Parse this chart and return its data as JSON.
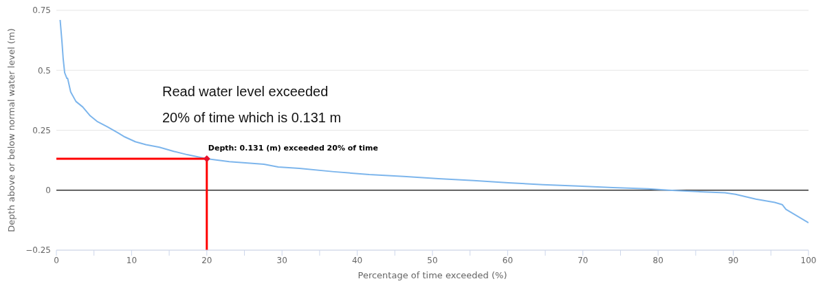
{
  "chart_data": {
    "type": "line",
    "xlabel": "Percentage of time exceeded (%)",
    "ylabel": "Depth above or below normal water level (m)",
    "xlim": [
      0,
      100
    ],
    "ylim": [
      -0.25,
      0.75
    ],
    "xticks": [
      0,
      {
        "value": 5,
        "label": null
      },
      10,
      {
        "value": 15,
        "label": null
      },
      20,
      {
        "value": 25,
        "label": null
      },
      30,
      {
        "value": 35,
        "label": null
      },
      40,
      {
        "value": 45,
        "label": null
      },
      50,
      {
        "value": 55,
        "label": null
      },
      60,
      {
        "value": 65,
        "label": null
      },
      70,
      {
        "value": 75,
        "label": null
      },
      80,
      {
        "value": 85,
        "label": null
      },
      90,
      {
        "value": 95,
        "label": null
      },
      100
    ],
    "yticks": [
      {
        "value": -0.25,
        "label": "−0.25"
      },
      0,
      0.25,
      0.5,
      0.75
    ],
    "grid": "y",
    "marker": "none",
    "line_style": "solid",
    "series": [
      {
        "color": "#7cb5ec",
        "x": [
          0.5,
          0.74,
          0.9,
          1.1,
          1.4,
          1.5,
          1.9,
          2.6,
          3.5,
          4.5,
          5.4,
          6.8,
          8.2,
          9.1,
          10.5,
          11.9,
          13.7,
          15.6,
          17.4,
          20,
          23,
          27.6,
          29.5,
          32.3,
          36.9,
          41.6,
          46.2,
          50.8,
          55.5,
          60.1,
          64.7,
          69.4,
          74,
          78.7,
          81.4,
          85.2,
          88.9,
          90.3,
          93,
          95.5,
          96.5,
          97,
          100
        ],
        "values": [
          0.71,
          0.62,
          0.55,
          0.49,
          0.466,
          0.466,
          0.41,
          0.37,
          0.347,
          0.31,
          0.287,
          0.264,
          0.239,
          0.222,
          0.202,
          0.19,
          0.179,
          0.162,
          0.148,
          0.131,
          0.119,
          0.108,
          0.097,
          0.091,
          0.077,
          0.065,
          0.057,
          0.048,
          0.04,
          0.031,
          0.023,
          0.017,
          0.011,
          0.006,
          0,
          -0.006,
          -0.011,
          -0.017,
          -0.037,
          -0.051,
          -0.06,
          -0.08,
          -0.136
        ]
      },
      {
        "type": "line",
        "color": "#ff0000",
        "x": [
          0,
          20,
          20
        ],
        "values": [
          0.131,
          0.131,
          -0.25
        ]
      },
      {
        "type": "scatter",
        "color": "#e8102a",
        "marker": "diamond",
        "x": [
          20
        ],
        "values": [
          0.131
        ]
      }
    ],
    "ref_lines": [
      {
        "axis": "y",
        "value": 0,
        "color": "#333333"
      }
    ],
    "annotations": [
      {
        "text": "Depth: 0.131 (m) exceeded 20% of time",
        "x": 20,
        "y": 0.131
      },
      "Read water level exceeded\n20% of time which is 0.131 m"
    ]
  }
}
